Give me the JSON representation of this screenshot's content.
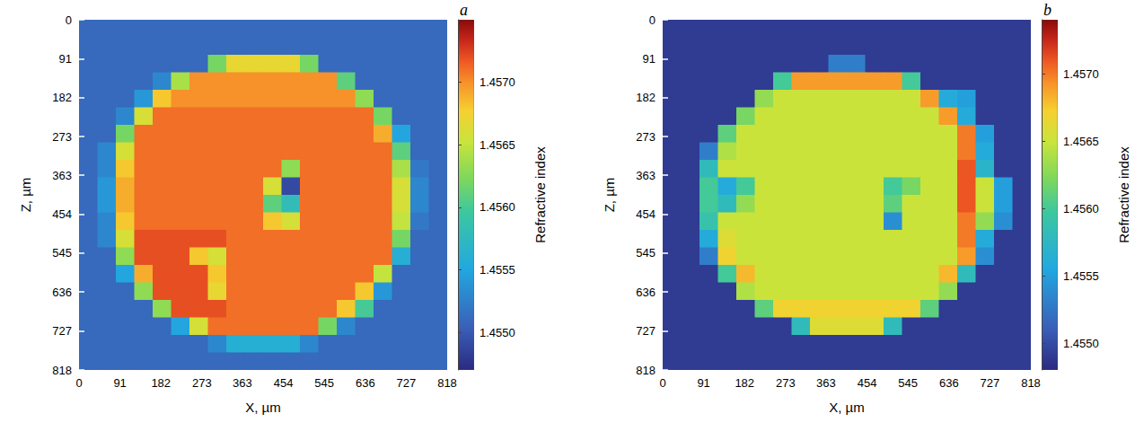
{
  "chart_data": [
    {
      "type": "heatmap",
      "title": "a",
      "x_label": "X, µm",
      "y_label": "Z, µm",
      "xlim": [
        0,
        818
      ],
      "ylim": [
        0,
        818
      ],
      "xticks": [
        0,
        91,
        182,
        273,
        363,
        454,
        545,
        636,
        727,
        818
      ],
      "yticks": [
        0,
        91,
        182,
        273,
        363,
        454,
        545,
        636,
        727,
        818
      ],
      "x_edges": [
        0,
        40.9,
        81.8,
        122.7,
        163.6,
        204.5,
        245.4,
        286.3,
        327.2,
        368.1,
        409,
        449.9,
        490.8,
        531.7,
        572.6,
        613.5,
        654.4,
        695.3,
        736.2,
        777.1,
        818
      ],
      "y_edges": [
        0,
        40.9,
        81.8,
        122.7,
        163.6,
        204.5,
        245.4,
        286.3,
        327.2,
        368.1,
        409,
        449.9,
        490.8,
        531.7,
        572.6,
        613.5,
        654.4,
        695.3,
        736.2,
        777.1,
        818
      ],
      "colorbar": {
        "label": "Refractive index",
        "range": [
          1.4547,
          1.4575
        ],
        "ticks": [
          {
            "value": 1.455,
            "label": "1.4550"
          },
          1.4555,
          {
            "value": 1.456,
            "label": "1.4560"
          },
          1.4565,
          {
            "value": 1.457,
            "label": "1.4570"
          }
        ]
      },
      "cells": [
        [
          1.4551,
          1.4551,
          1.4551,
          1.4551,
          1.4551,
          1.4551,
          1.4551,
          1.4551,
          1.4551,
          1.4551,
          1.4551,
          1.4551,
          1.4551,
          1.4551,
          1.4551,
          1.4551,
          1.4551,
          1.4551,
          1.4551,
          1.4551
        ],
        [
          1.4551,
          1.4551,
          1.4551,
          1.4551,
          1.4551,
          1.4551,
          1.4551,
          1.4551,
          1.4551,
          1.4551,
          1.4551,
          1.4551,
          1.4551,
          1.4551,
          1.4551,
          1.4551,
          1.4551,
          1.4551,
          1.4551,
          1.4551
        ],
        [
          1.4551,
          1.4551,
          1.4551,
          1.4551,
          1.4551,
          1.4551,
          1.4551,
          1.4562,
          1.4567,
          1.4567,
          1.4567,
          1.4567,
          1.4562,
          1.4551,
          1.4551,
          1.4551,
          1.4551,
          1.4551,
          1.4551,
          1.4551
        ],
        [
          1.4551,
          1.4551,
          1.4551,
          1.4551,
          1.4553,
          1.4564,
          1.457,
          1.457,
          1.457,
          1.457,
          1.457,
          1.457,
          1.457,
          1.457,
          1.4561,
          1.4551,
          1.4551,
          1.4551,
          1.4551,
          1.4551
        ],
        [
          1.4551,
          1.4551,
          1.4551,
          1.4554,
          1.4568,
          1.457,
          1.457,
          1.457,
          1.457,
          1.457,
          1.457,
          1.457,
          1.457,
          1.457,
          1.457,
          1.4563,
          1.4551,
          1.4551,
          1.4551,
          1.4551
        ],
        [
          1.4551,
          1.4551,
          1.4553,
          1.4566,
          1.4571,
          1.4571,
          1.4571,
          1.4571,
          1.4571,
          1.4571,
          1.4571,
          1.4571,
          1.4571,
          1.4571,
          1.4571,
          1.4571,
          1.4562,
          1.4551,
          1.4551,
          1.4551
        ],
        [
          1.4551,
          1.4551,
          1.4562,
          1.4571,
          1.4571,
          1.4571,
          1.4571,
          1.4571,
          1.4571,
          1.4571,
          1.4571,
          1.4571,
          1.4571,
          1.4571,
          1.4571,
          1.4571,
          1.4569,
          1.4555,
          1.4551,
          1.4551
        ],
        [
          1.4551,
          1.4553,
          1.4566,
          1.4571,
          1.4571,
          1.4571,
          1.4571,
          1.4571,
          1.4571,
          1.4571,
          1.4571,
          1.4571,
          1.4571,
          1.4571,
          1.4571,
          1.4571,
          1.4571,
          1.4561,
          1.4551,
          1.4551
        ],
        [
          1.4551,
          1.4553,
          1.4568,
          1.4571,
          1.4571,
          1.4571,
          1.4571,
          1.4571,
          1.4571,
          1.4571,
          1.4571,
          1.4563,
          1.4571,
          1.4571,
          1.4571,
          1.4571,
          1.4571,
          1.4564,
          1.4552,
          1.4551
        ],
        [
          1.4551,
          1.4554,
          1.4569,
          1.4571,
          1.4571,
          1.4571,
          1.4571,
          1.4571,
          1.4571,
          1.4571,
          1.4566,
          1.4549,
          1.4571,
          1.4571,
          1.4571,
          1.4571,
          1.4571,
          1.4566,
          1.4553,
          1.4551
        ],
        [
          1.4551,
          1.4554,
          1.4569,
          1.4571,
          1.4571,
          1.4571,
          1.4571,
          1.4571,
          1.4571,
          1.4571,
          1.4561,
          1.4558,
          1.4571,
          1.4571,
          1.4571,
          1.4571,
          1.4571,
          1.4566,
          1.4553,
          1.4551
        ],
        [
          1.4551,
          1.4553,
          1.4568,
          1.4571,
          1.4571,
          1.4571,
          1.4571,
          1.4571,
          1.4571,
          1.4571,
          1.4568,
          1.4566,
          1.4571,
          1.4571,
          1.4571,
          1.4571,
          1.4571,
          1.4565,
          1.4552,
          1.4551
        ],
        [
          1.4551,
          1.4553,
          1.4566,
          1.4572,
          1.4572,
          1.4572,
          1.4572,
          1.4572,
          1.4571,
          1.4571,
          1.4571,
          1.4571,
          1.4571,
          1.4571,
          1.4571,
          1.4571,
          1.4571,
          1.4562,
          1.4551,
          1.4551
        ],
        [
          1.4551,
          1.4551,
          1.4563,
          1.4572,
          1.4572,
          1.4572,
          1.4568,
          1.4566,
          1.4571,
          1.4571,
          1.4571,
          1.4571,
          1.4571,
          1.4571,
          1.4571,
          1.4571,
          1.4571,
          1.4556,
          1.4551,
          1.4551
        ],
        [
          1.4551,
          1.4551,
          1.4555,
          1.4569,
          1.4572,
          1.4572,
          1.4572,
          1.4568,
          1.4571,
          1.4571,
          1.4571,
          1.4571,
          1.4571,
          1.4571,
          1.4571,
          1.4571,
          1.4565,
          1.4551,
          1.4551,
          1.4551
        ],
        [
          1.4551,
          1.4551,
          1.4551,
          1.4563,
          1.4572,
          1.4572,
          1.4572,
          1.4567,
          1.4571,
          1.4571,
          1.4571,
          1.4571,
          1.4571,
          1.4571,
          1.4571,
          1.4568,
          1.4554,
          1.4551,
          1.4551,
          1.4551
        ],
        [
          1.4551,
          1.4551,
          1.4551,
          1.4551,
          1.4563,
          1.4572,
          1.4572,
          1.4572,
          1.4571,
          1.4571,
          1.4571,
          1.4571,
          1.4571,
          1.4571,
          1.4568,
          1.456,
          1.4551,
          1.4551,
          1.4551,
          1.4551
        ],
        [
          1.4551,
          1.4551,
          1.4551,
          1.4551,
          1.4551,
          1.4555,
          1.4566,
          1.4571,
          1.4571,
          1.4571,
          1.4571,
          1.4571,
          1.4571,
          1.4562,
          1.4553,
          1.4551,
          1.4551,
          1.4551,
          1.4551,
          1.4551
        ],
        [
          1.4551,
          1.4551,
          1.4551,
          1.4551,
          1.4551,
          1.4551,
          1.4551,
          1.4553,
          1.4556,
          1.4556,
          1.4556,
          1.4556,
          1.4553,
          1.4551,
          1.4551,
          1.4551,
          1.4551,
          1.4551,
          1.4551,
          1.4551
        ],
        [
          1.4551,
          1.4551,
          1.4551,
          1.4551,
          1.4551,
          1.4551,
          1.4551,
          1.4551,
          1.4551,
          1.4551,
          1.4551,
          1.4551,
          1.4551,
          1.4551,
          1.4551,
          1.4551,
          1.4551,
          1.4551,
          1.4551,
          1.4551
        ]
      ]
    },
    {
      "type": "heatmap",
      "title": "b",
      "x_label": "X, µm",
      "y_label": "Z, µm",
      "xlim": [
        0,
        818
      ],
      "ylim": [
        0,
        818
      ],
      "xticks": [
        0,
        91,
        182,
        273,
        363,
        454,
        545,
        636,
        727,
        818
      ],
      "yticks": [
        0,
        91,
        182,
        273,
        363,
        454,
        545,
        636,
        727,
        818
      ],
      "x_edges": [
        0,
        40.9,
        81.8,
        122.7,
        163.6,
        204.5,
        245.4,
        286.3,
        327.2,
        368.1,
        409,
        449.9,
        490.8,
        531.7,
        572.6,
        613.5,
        654.4,
        695.3,
        736.2,
        777.1,
        818
      ],
      "y_edges": [
        0,
        40.9,
        81.8,
        122.7,
        163.6,
        204.5,
        245.4,
        286.3,
        327.2,
        368.1,
        409,
        449.9,
        490.8,
        531.7,
        572.6,
        613.5,
        654.4,
        695.3,
        736.2,
        777.1,
        818
      ],
      "colorbar": {
        "label": "Refractive index",
        "range": [
          1.4548,
          1.4574
        ],
        "ticks": [
          {
            "value": 1.455,
            "label": "1.4550"
          },
          1.4555,
          {
            "value": 1.456,
            "label": "1.4560"
          },
          1.4565,
          {
            "value": 1.457,
            "label": "1.4570"
          }
        ]
      },
      "cells": [
        [
          1.4549,
          1.4549,
          1.4549,
          1.4549,
          1.4549,
          1.4549,
          1.4549,
          1.4549,
          1.4549,
          1.4549,
          1.4549,
          1.4549,
          1.4549,
          1.4549,
          1.4549,
          1.4549,
          1.4549,
          1.4549,
          1.4549,
          1.4549
        ],
        [
          1.4549,
          1.4549,
          1.4549,
          1.4549,
          1.4549,
          1.4549,
          1.4549,
          1.4549,
          1.4549,
          1.4549,
          1.4549,
          1.4549,
          1.4549,
          1.4549,
          1.4549,
          1.4549,
          1.4549,
          1.4549,
          1.4549,
          1.4549
        ],
        [
          1.4549,
          1.4549,
          1.4549,
          1.4549,
          1.4549,
          1.4549,
          1.4549,
          1.4549,
          1.4549,
          1.4553,
          1.4553,
          1.4549,
          1.4549,
          1.4549,
          1.4549,
          1.4549,
          1.4549,
          1.4549,
          1.4549,
          1.4549
        ],
        [
          1.4549,
          1.4549,
          1.4549,
          1.4549,
          1.4549,
          1.4549,
          1.456,
          1.4569,
          1.4569,
          1.4569,
          1.4569,
          1.4569,
          1.4569,
          1.456,
          1.4549,
          1.4549,
          1.4549,
          1.4549,
          1.4549,
          1.4549
        ],
        [
          1.4549,
          1.4549,
          1.4549,
          1.4549,
          1.4549,
          1.4563,
          1.4565,
          1.4565,
          1.4565,
          1.4565,
          1.4565,
          1.4565,
          1.4565,
          1.4565,
          1.4569,
          1.4556,
          1.4555,
          1.4549,
          1.4549,
          1.4549
        ],
        [
          1.4549,
          1.4549,
          1.4549,
          1.4549,
          1.4562,
          1.4565,
          1.4565,
          1.4565,
          1.4565,
          1.4565,
          1.4565,
          1.4565,
          1.4565,
          1.4565,
          1.4565,
          1.4569,
          1.4556,
          1.4549,
          1.4549,
          1.4549
        ],
        [
          1.4549,
          1.4549,
          1.4549,
          1.4561,
          1.4565,
          1.4565,
          1.4565,
          1.4565,
          1.4565,
          1.4565,
          1.4565,
          1.4565,
          1.4565,
          1.4565,
          1.4565,
          1.4565,
          1.457,
          1.4555,
          1.4549,
          1.4549
        ],
        [
          1.4549,
          1.4549,
          1.4553,
          1.4564,
          1.4565,
          1.4565,
          1.4565,
          1.4565,
          1.4565,
          1.4565,
          1.4565,
          1.4565,
          1.4565,
          1.4565,
          1.4565,
          1.4565,
          1.457,
          1.4556,
          1.4549,
          1.4549
        ],
        [
          1.4549,
          1.4549,
          1.4558,
          1.4565,
          1.4565,
          1.4565,
          1.4565,
          1.4565,
          1.4565,
          1.4565,
          1.4565,
          1.4565,
          1.4565,
          1.4565,
          1.4565,
          1.4565,
          1.4571,
          1.4557,
          1.4549,
          1.4549
        ],
        [
          1.4549,
          1.4549,
          1.456,
          1.4556,
          1.456,
          1.4565,
          1.4565,
          1.4565,
          1.4565,
          1.4565,
          1.4565,
          1.4565,
          1.456,
          1.4562,
          1.4565,
          1.4565,
          1.4571,
          1.4565,
          1.4555,
          1.4549
        ],
        [
          1.4549,
          1.4549,
          1.456,
          1.4558,
          1.4563,
          1.4565,
          1.4565,
          1.4565,
          1.4565,
          1.4565,
          1.4565,
          1.4565,
          1.4561,
          1.4565,
          1.4565,
          1.4565,
          1.4571,
          1.4565,
          1.4555,
          1.4549
        ],
        [
          1.4549,
          1.4549,
          1.4559,
          1.4565,
          1.4565,
          1.4565,
          1.4565,
          1.4565,
          1.4565,
          1.4565,
          1.4565,
          1.4565,
          1.4554,
          1.4565,
          1.4565,
          1.4565,
          1.457,
          1.4563,
          1.4554,
          1.4549
        ],
        [
          1.4549,
          1.4549,
          1.4556,
          1.4566,
          1.4565,
          1.4565,
          1.4565,
          1.4565,
          1.4565,
          1.4565,
          1.4565,
          1.4565,
          1.4565,
          1.4565,
          1.4565,
          1.4565,
          1.457,
          1.4556,
          1.4549,
          1.4549
        ],
        [
          1.4549,
          1.4549,
          1.4553,
          1.4567,
          1.4565,
          1.4565,
          1.4565,
          1.4565,
          1.4565,
          1.4565,
          1.4565,
          1.4565,
          1.4565,
          1.4565,
          1.4565,
          1.4565,
          1.4569,
          1.4554,
          1.4549,
          1.4549
        ],
        [
          1.4549,
          1.4549,
          1.4549,
          1.456,
          1.4568,
          1.4565,
          1.4565,
          1.4565,
          1.4565,
          1.4565,
          1.4565,
          1.4565,
          1.4565,
          1.4565,
          1.4565,
          1.4568,
          1.4558,
          1.4549,
          1.4549,
          1.4549
        ],
        [
          1.4549,
          1.4549,
          1.4549,
          1.4549,
          1.4564,
          1.4565,
          1.4565,
          1.4565,
          1.4565,
          1.4565,
          1.4565,
          1.4565,
          1.4565,
          1.4565,
          1.4565,
          1.4563,
          1.4549,
          1.4549,
          1.4549,
          1.4549
        ],
        [
          1.4549,
          1.4549,
          1.4549,
          1.4549,
          1.4549,
          1.4561,
          1.4567,
          1.4567,
          1.4567,
          1.4567,
          1.4567,
          1.4567,
          1.4567,
          1.4567,
          1.4561,
          1.4549,
          1.4549,
          1.4549,
          1.4549,
          1.4549
        ],
        [
          1.4549,
          1.4549,
          1.4549,
          1.4549,
          1.4549,
          1.4549,
          1.4549,
          1.4558,
          1.4566,
          1.4566,
          1.4566,
          1.4566,
          1.4558,
          1.4549,
          1.4549,
          1.4549,
          1.4549,
          1.4549,
          1.4549,
          1.4549
        ],
        [
          1.4549,
          1.4549,
          1.4549,
          1.4549,
          1.4549,
          1.4549,
          1.4549,
          1.4549,
          1.4549,
          1.4549,
          1.4549,
          1.4549,
          1.4549,
          1.4549,
          1.4549,
          1.4549,
          1.4549,
          1.4549,
          1.4549,
          1.4549
        ],
        [
          1.4549,
          1.4549,
          1.4549,
          1.4549,
          1.4549,
          1.4549,
          1.4549,
          1.4549,
          1.4549,
          1.4549,
          1.4549,
          1.4549,
          1.4549,
          1.4549,
          1.4549,
          1.4549,
          1.4549,
          1.4549,
          1.4549,
          1.4549
        ]
      ]
    }
  ]
}
